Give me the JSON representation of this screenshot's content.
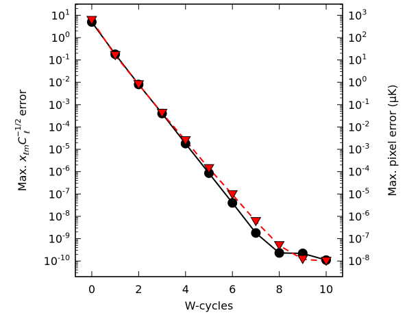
{
  "chart_data": {
    "type": "line",
    "xlabel": "W-cycles",
    "ylabel_left": "Max. x_{ℓm} C_ℓ^{-1/2} error",
    "ylabel_right": "Max. pixel error (μK)",
    "x_ticks": [
      "0",
      "2",
      "4",
      "6",
      "8",
      "10"
    ],
    "y_left_exponents": [
      1,
      0,
      -1,
      -2,
      -3,
      -4,
      -5,
      -6,
      -7,
      -8,
      -9,
      -10
    ],
    "y_right_exponents": [
      3,
      2,
      1,
      0,
      -1,
      -2,
      -3,
      -4,
      -5,
      -6,
      -7,
      -8
    ],
    "y_scale": "log",
    "xlim": [
      -0.7,
      10.7
    ],
    "ylim_left_log10": [
      -10.7,
      1.5
    ],
    "series": [
      {
        "axis": "left",
        "style": "solid",
        "color": "#000000",
        "marker": "circle",
        "x": [
          0,
          1,
          2,
          3,
          4,
          5,
          6,
          7,
          8,
          9,
          10
        ],
        "y": [
          5.0,
          0.18,
          0.008,
          0.0004,
          1.8e-05,
          8.5e-07,
          4e-08,
          1.8e-09,
          2.3e-10,
          2.2e-10,
          1.1e-10
        ]
      },
      {
        "axis": "left",
        "style": "dashed",
        "color": "#ff0000",
        "marker": "triangle-down",
        "x": [
          0,
          1,
          2,
          3,
          4,
          5,
          6,
          7,
          8,
          9,
          10
        ],
        "y": [
          6.0,
          0.16,
          0.008,
          0.00042,
          2.5e-05,
          1.4e-06,
          9.5e-08,
          6e-09,
          5e-10,
          1.2e-10,
          1e-10
        ]
      }
    ]
  }
}
